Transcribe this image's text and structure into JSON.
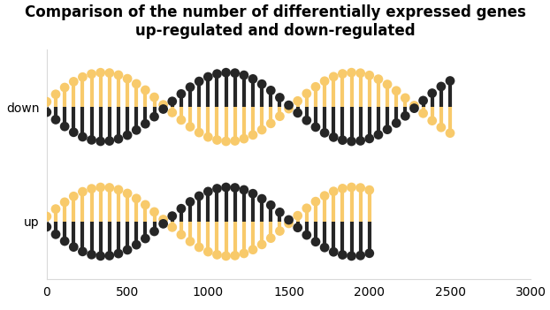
{
  "chart_data": {
    "type": "bar",
    "orientation": "horizontal",
    "title": "Comparison of the number of differentially expressed genes up-regulated and down-regulated",
    "categories": [
      "down",
      "up"
    ],
    "values": [
      2500,
      2000
    ],
    "colors": [
      "#f8ca6b",
      "#262626"
    ],
    "xlim": [
      0,
      3000
    ],
    "xticks": [
      0,
      500,
      1000,
      1500,
      2000,
      2500,
      3000
    ],
    "grid": false
  }
}
